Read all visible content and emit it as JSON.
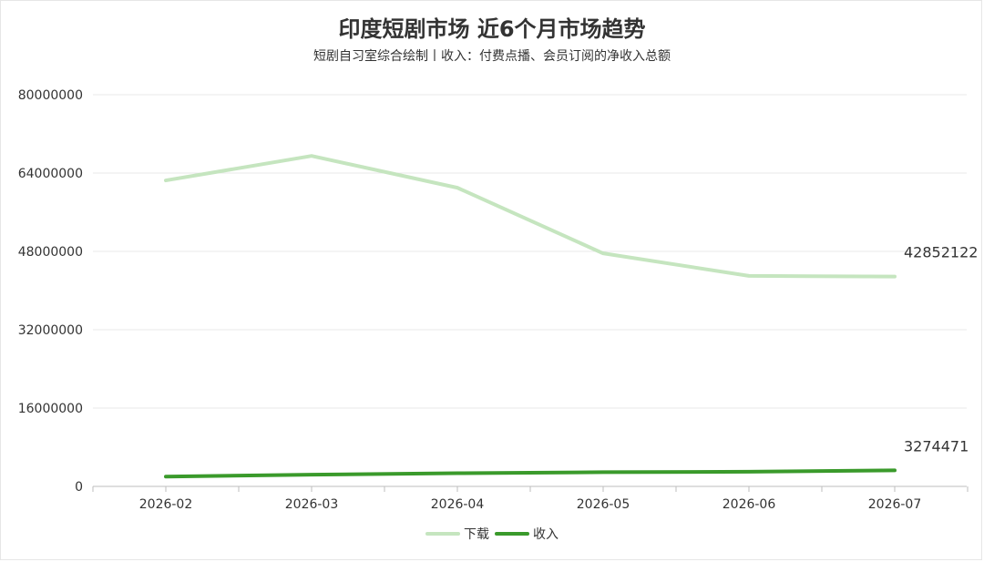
{
  "title": "印度短剧市场 近6个月市场趋势",
  "subtitle": "短剧自习室综合绘制丨收入：付费点播、会员订阅的净收入总额",
  "chart_data": {
    "type": "line",
    "x": [
      "2026-02",
      "2026-03",
      "2026-04",
      "2026-05",
      "2026-06",
      "2026-07"
    ],
    "ylim": [
      0,
      80000000
    ],
    "yticks": [
      "0",
      "16000000",
      "32000000",
      "48000000",
      "64000000",
      "80000000"
    ],
    "ytick_values": [
      0,
      16000000,
      32000000,
      48000000,
      64000000,
      80000000
    ],
    "grid": true,
    "legend_position": "bottom",
    "series": [
      {
        "name": "下载",
        "color": "#c5e5bf",
        "values": [
          62500000,
          67500000,
          61000000,
          47600000,
          43000000,
          42852122
        ],
        "end_label": "42852122"
      },
      {
        "name": "收入",
        "color": "#3a9a2b",
        "values": [
          2000000,
          2400000,
          2700000,
          2900000,
          3000000,
          3274471
        ],
        "end_label": "3274471"
      }
    ]
  }
}
